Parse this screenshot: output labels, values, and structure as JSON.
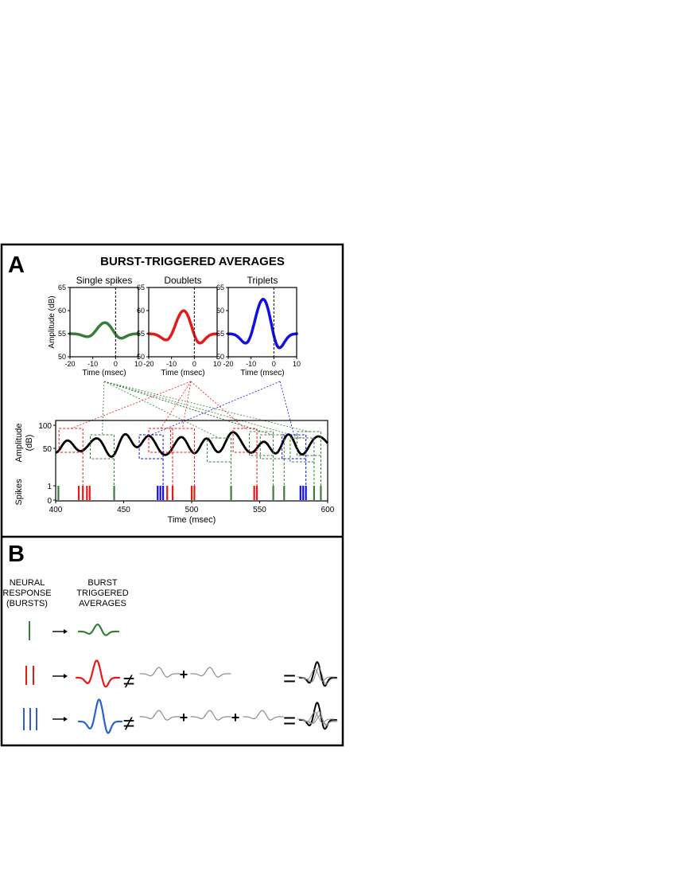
{
  "colors": {
    "single": "#3a7d3a",
    "doublet": "#e81818",
    "triplet": "#1010e6",
    "triplet_b": "#2c5fcf",
    "trace": "#000000",
    "grey": "#8c8c8c"
  },
  "panel_a": {
    "letter": "A",
    "title": "BURST-TRIGGERED AVERAGES",
    "insets": [
      {
        "key": "single",
        "title": "Single spikes",
        "color": "#3a7d3a",
        "peak": 57.5,
        "ylabel": "Amplitude (dB)",
        "xlabel": "Time (msec)",
        "xticks": [
          "-20",
          "-10",
          "0",
          "10"
        ],
        "yticks": [
          "50",
          "55",
          "60",
          "65"
        ]
      },
      {
        "key": "doublet",
        "title": "Doublets",
        "color": "#e81818",
        "peak": 60.2,
        "ylabel": "",
        "xlabel": "Time (msec)",
        "xticks": [
          "-20",
          "-10",
          "0",
          "10"
        ],
        "yticks": [
          "50",
          "55",
          "60",
          "65"
        ]
      },
      {
        "key": "triplet",
        "title": "Triplets",
        "color": "#1010e6",
        "peak": 62.8,
        "ylabel": "",
        "xlabel": "Time (msec)",
        "xticks": [
          "-20",
          "-10",
          "0",
          "10"
        ],
        "yticks": [
          "50",
          "55",
          "60",
          "65"
        ]
      }
    ],
    "trace": {
      "ylabel_line1": "Amplitude",
      "ylabel_line2": "(dB)",
      "yticks": [
        "50",
        "100"
      ],
      "spikes_label": "Spikes",
      "spike_yticks": [
        "0",
        "1"
      ],
      "xlabel": "Time (msec)",
      "xticks": [
        "400",
        "450",
        "500",
        "550",
        "600"
      ],
      "x_range_ms": [
        400,
        600
      ],
      "spikes": {
        "single": [
          402,
          443,
          529,
          560,
          568,
          590,
          595
        ],
        "doublet": [
          [
            417,
            420
          ],
          [
            482,
            486
          ],
          [
            500,
            502
          ],
          [
            546,
            548
          ]
        ],
        "triplet": [
          [
            475,
            477,
            479
          ],
          [
            580,
            582,
            584
          ]
        ],
        "extra_doublet": [
          [
            423,
            425
          ]
        ]
      }
    }
  },
  "panel_b": {
    "letter": "B",
    "col1": [
      "NEURAL",
      "RESPONSE",
      "(BURSTS)"
    ],
    "col2": [
      "BURST",
      "TRIGGERED",
      "AVERAGES"
    ],
    "neq": "≠",
    "plus": "+",
    "eq": "="
  }
}
